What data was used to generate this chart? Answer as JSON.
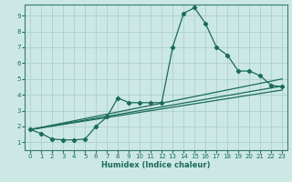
{
  "xlabel": "Humidex (Indice chaleur)",
  "background_color": "#cce8e5",
  "grid_color": "#aed0cc",
  "line_color": "#1a6b5a",
  "spine_color": "#3a7a6a",
  "xlim": [
    -0.5,
    23.5
  ],
  "ylim": [
    0.5,
    9.7
  ],
  "xticks": [
    0,
    1,
    2,
    3,
    4,
    5,
    6,
    7,
    8,
    9,
    10,
    11,
    12,
    13,
    14,
    15,
    16,
    17,
    18,
    19,
    20,
    21,
    22,
    23
  ],
  "yticks": [
    1,
    2,
    3,
    4,
    5,
    6,
    7,
    8,
    9
  ],
  "line1_x": [
    0,
    1,
    2,
    3,
    4,
    5,
    6,
    7,
    8,
    9,
    10,
    11,
    12,
    13,
    14,
    15,
    16,
    17,
    18,
    19,
    20,
    21,
    22,
    23
  ],
  "line1_y": [
    1.8,
    1.55,
    1.2,
    1.15,
    1.15,
    1.2,
    2.0,
    2.6,
    3.8,
    3.5,
    3.5,
    3.5,
    3.5,
    7.0,
    9.15,
    9.5,
    8.5,
    7.0,
    6.5,
    5.5,
    5.5,
    5.2,
    4.6,
    4.5
  ],
  "line2_x": [
    0,
    23
  ],
  "line2_y": [
    1.8,
    4.55
  ],
  "line3_x": [
    0,
    23
  ],
  "line3_y": [
    1.8,
    4.3
  ],
  "line4_x": [
    0,
    23
  ],
  "line4_y": [
    1.8,
    5.0
  ],
  "tick_fontsize": 5.0,
  "xlabel_fontsize": 6.0,
  "linewidth": 0.9,
  "markersize": 2.2
}
